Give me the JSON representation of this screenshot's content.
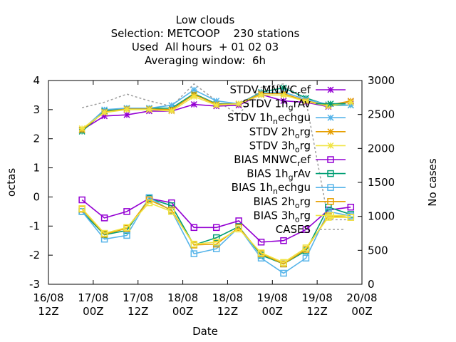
{
  "chart_data": {
    "type": "line",
    "title_lines": [
      "Low clouds",
      "Selection: METCOOP    230 stations",
      "Used  All hours  + 01 02 03",
      "Averaging window:  6h"
    ],
    "xlabel": "Date",
    "ylabel": "octas",
    "y2label": "No cases",
    "x_ticks": [
      {
        "l1": "16/08",
        "l2": "12Z"
      },
      {
        "l1": "17/08",
        "l2": "00Z"
      },
      {
        "l1": "17/08",
        "l2": "12Z"
      },
      {
        "l1": "18/08",
        "l2": "00Z"
      },
      {
        "l1": "18/08",
        "l2": "12Z"
      },
      {
        "l1": "19/08",
        "l2": "00Z"
      },
      {
        "l1": "19/08",
        "l2": "12Z"
      },
      {
        "l1": "20/08",
        "l2": "00Z"
      }
    ],
    "xlim": [
      0,
      84
    ],
    "ylim": [
      -3,
      4
    ],
    "y_ticks": [
      "-3",
      "-2",
      "-1",
      "0",
      "1",
      "2",
      "3",
      "4"
    ],
    "y2lim": [
      0,
      3000
    ],
    "y2_ticks": [
      "0",
      "500",
      "1000",
      "1500",
      "2000",
      "2500",
      "3000"
    ],
    "x": [
      9,
      15,
      21,
      27,
      33,
      39,
      45,
      51,
      57,
      63,
      69,
      75,
      81
    ],
    "series": [
      {
        "name": "STDV MNWC_ref",
        "kind": "stdv",
        "color": "#9400d3",
        "marker": "star",
        "values": [
          2.3,
          2.78,
          2.82,
          2.95,
          2.95,
          3.18,
          3.12,
          3.15,
          3.52,
          3.3,
          3.25,
          3.1,
          3.28
        ]
      },
      {
        "name": "STDV 1h_gAv",
        "kind": "stdv",
        "color": "#009e73",
        "marker": "star",
        "values": [
          2.25,
          2.95,
          3.05,
          3.05,
          3.05,
          3.55,
          3.2,
          3.2,
          3.6,
          3.75,
          3.4,
          3.15,
          3.15
        ]
      },
      {
        "name": "STDV 1h_nechgu",
        "kind": "stdv",
        "color": "#56b4e9",
        "marker": "star",
        "values": [
          2.3,
          3.0,
          3.05,
          3.05,
          3.15,
          3.68,
          3.3,
          3.2,
          3.58,
          3.6,
          3.35,
          3.18,
          3.15
        ]
      },
      {
        "name": "STDV 2h_org",
        "kind": "stdv",
        "color": "#e69f00",
        "marker": "star",
        "values": [
          2.3,
          2.92,
          3.02,
          3.02,
          3.0,
          3.52,
          3.18,
          3.2,
          3.55,
          3.55,
          3.3,
          3.15,
          3.3
        ]
      },
      {
        "name": "STDV 3h_org",
        "kind": "stdv",
        "color": "#f0e442",
        "marker": "star",
        "values": [
          2.35,
          2.9,
          3.0,
          3.0,
          2.95,
          3.45,
          3.15,
          3.2,
          3.5,
          3.5,
          3.28,
          3.12,
          3.25
        ]
      },
      {
        "name": "BIAS MNWC_ref",
        "kind": "bias",
        "color": "#9400d3",
        "marker": "square",
        "values": [
          -0.1,
          -0.72,
          -0.5,
          -0.05,
          -0.2,
          -1.05,
          -1.05,
          -0.82,
          -1.55,
          -1.5,
          -1.12,
          -0.45,
          -0.35
        ]
      },
      {
        "name": "BIAS 1h_gAv",
        "kind": "bias",
        "color": "#009e73",
        "marker": "square",
        "values": [
          -0.5,
          -1.3,
          -1.15,
          -0.05,
          -0.3,
          -1.65,
          -1.4,
          -1.02,
          -2.0,
          -2.3,
          -1.85,
          -0.35,
          -0.6
        ]
      },
      {
        "name": "BIAS 1h_nechgu",
        "kind": "bias",
        "color": "#56b4e9",
        "marker": "square",
        "values": [
          -0.5,
          -1.45,
          -1.32,
          -0.02,
          -0.48,
          -1.95,
          -1.78,
          -1.05,
          -2.1,
          -2.62,
          -2.1,
          -0.5,
          -0.65
        ]
      },
      {
        "name": "BIAS 2h_org",
        "kind": "bias",
        "color": "#e69f00",
        "marker": "square",
        "values": [
          -0.42,
          -1.28,
          -1.08,
          -0.1,
          -0.45,
          -1.65,
          -1.62,
          -1.05,
          -1.95,
          -2.3,
          -1.8,
          -0.65,
          -0.7
        ]
      },
      {
        "name": "BIAS 3h_org",
        "kind": "bias",
        "color": "#f0e442",
        "marker": "square",
        "values": [
          -0.4,
          -1.25,
          -1.05,
          -0.2,
          -0.5,
          -1.62,
          -1.55,
          -1.1,
          -1.92,
          -2.25,
          -1.75,
          -0.7,
          -0.7
        ]
      },
      {
        "name": "CASES",
        "kind": "cases",
        "color": "#a0a0a0",
        "axis": "y2",
        "values": [
          2600,
          2680,
          2800,
          2700,
          2620,
          2950,
          2700,
          2500,
          2900,
          2950,
          2700,
          950,
          950
        ]
      }
    ],
    "legend_placement": "top-right",
    "legend_labels": [
      {
        "pre": "STDV MNWC",
        "sub": "r",
        "post": "ef"
      },
      {
        "pre": "STDV 1h",
        "sub": "g",
        "post": "rAv"
      },
      {
        "pre": "STDV 1h",
        "sub": "n",
        "post": "echgu"
      },
      {
        "pre": "STDV 2h",
        "sub": "o",
        "post": "rg"
      },
      {
        "pre": "STDV 3h",
        "sub": "o",
        "post": "rg"
      },
      {
        "pre": "BIAS MNWC",
        "sub": "r",
        "post": "ef"
      },
      {
        "pre": "BIAS 1h",
        "sub": "g",
        "post": "rAv"
      },
      {
        "pre": "BIAS 1h",
        "sub": "n",
        "post": "echgu"
      },
      {
        "pre": "BIAS 2h",
        "sub": "o",
        "post": "rg"
      },
      {
        "pre": "BIAS 3h",
        "sub": "o",
        "post": "rg"
      },
      {
        "pre": "CASES",
        "sub": "",
        "post": ""
      }
    ],
    "grid": false
  }
}
